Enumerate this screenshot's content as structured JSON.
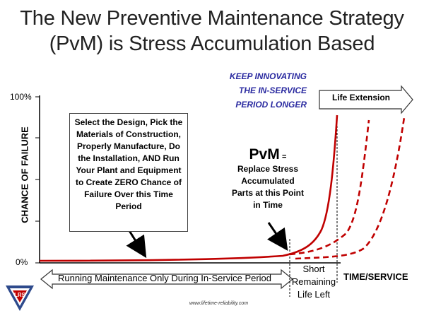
{
  "title": {
    "line1": "The New Preventive Maintenance Strategy",
    "line2": "(PvM) is Stress Accumulation Based"
  },
  "axes": {
    "y_label": "CHANCE OF FAILURE",
    "y_ticks": [
      "100%",
      "0%"
    ],
    "x_label": "TIME/SERVICE"
  },
  "annotations": {
    "design_box": "Select the Design, Pick the Materials of Construction, Properly Manufacture, Do the Installation, AND Run Your Plant and Equipment to Create ZERO Chance of Failure Over this Time Period",
    "innovate_line1": "KEEP INNOVATING",
    "innovate_line2": "THE IN-SERVICE",
    "innovate_line3": "PERIOD LONGER",
    "pvm_title": "PvM",
    "pvm_eq": "=",
    "pvm_text": "Replace Stress Accumulated Parts at this Point in Time",
    "short_life": "Short Remaining Life Left",
    "life_extension": "Life Extension",
    "running_maintenance": "Running Maintenance Only During In-Service Period"
  },
  "footer": {
    "url": "www.lifetime-reliability.com",
    "logo_text": "LRS"
  },
  "colors": {
    "curve": "#c00000",
    "innovate_text": "#2a2aa0",
    "logo_blue": "#2e4a8c",
    "logo_red": "#c00000"
  }
}
